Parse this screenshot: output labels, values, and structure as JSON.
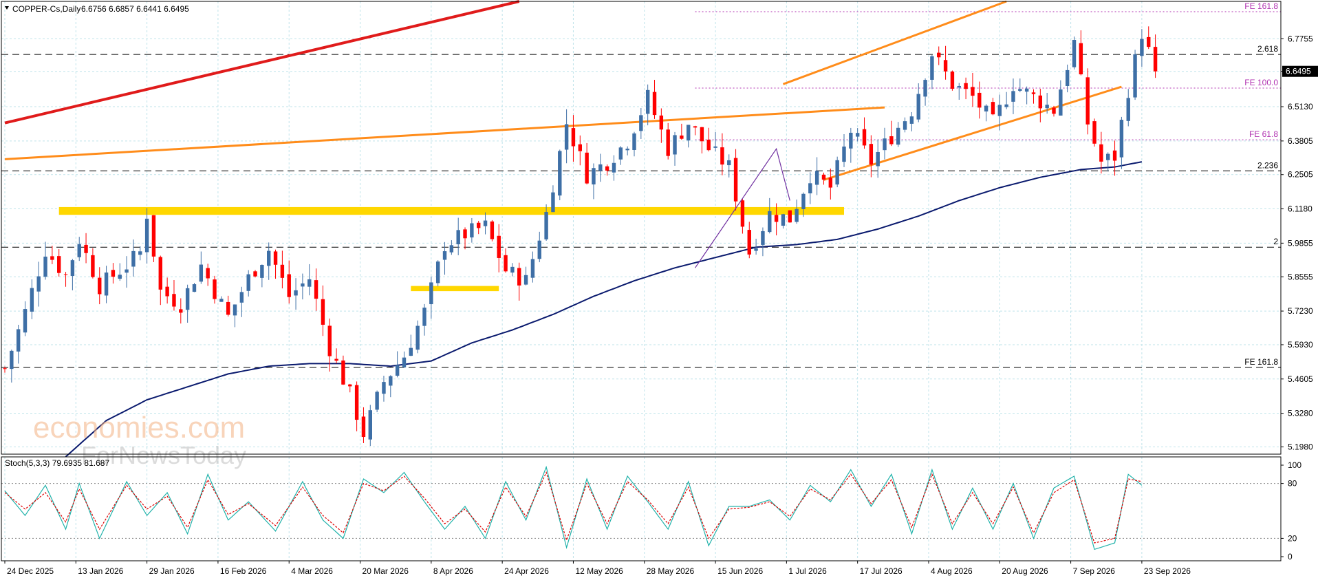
{
  "header": {
    "symbol": "COPPER-Cs,Daily",
    "ohlc": "6.6756 6.6857 6.6441 6.6495"
  },
  "indicator": {
    "label": "Stoch(5,3,3) 79.6935 81.687"
  },
  "watermark": {
    "brand": "economies.com",
    "sub": "ForNewsToday"
  },
  "colors": {
    "bull": "#3e6fa6",
    "bear": "#ff0000",
    "ma": "#0a1a6e",
    "trend_red": "#e01b1b",
    "trend_orange": "#ff8c1a",
    "zone": "#ffd700",
    "fe_line": "#b030b0",
    "stoch_main": "#20b2aa",
    "stoch_signal": "#dd0000",
    "grid": "#bfe3ea"
  },
  "chart_data": {
    "type": "candlestick",
    "instrument": "COPPER-Cs",
    "timeframe": "Daily",
    "last_price": "6.6495",
    "y_ticks": [
      "6.7755",
      "6.6495",
      "6.5130",
      "6.3805",
      "6.2505",
      "6.1180",
      "5.9855",
      "5.8555",
      "5.7230",
      "5.5930",
      "5.4605",
      "5.3280",
      "5.1980"
    ],
    "y_tick_values": [
      6.7755,
      6.6495,
      6.513,
      6.3805,
      6.2505,
      6.118,
      5.9855,
      5.8555,
      5.723,
      5.593,
      5.4605,
      5.328,
      5.198
    ],
    "ylim": [
      5.17,
      6.92
    ],
    "x_ticks": [
      "24 Dec 2025",
      "13 Jan 2026",
      "29 Jan 2026",
      "16 Feb 2026",
      "4 Mar 2026",
      "20 Mar 2026",
      "8 Apr 2026",
      "24 Apr 2026",
      "12 May 2026",
      "28 May 2026",
      "15 Jun 2026",
      "1 Jul 2026",
      "17 Jul 2026",
      "4 Aug 2026",
      "20 Aug 2026",
      "7 Sep 2026",
      "23 Sep 2026"
    ],
    "x_tick_bars": [
      0,
      10.5,
      21,
      31.5,
      42,
      52.5,
      63,
      73.5,
      84,
      94.5,
      105,
      115.5,
      126,
      136.5,
      147,
      157.5,
      168
    ],
    "bar_range": [
      0,
      178
    ],
    "candles_anchor_closes": [
      [
        0,
        5.5
      ],
      [
        3,
        5.72
      ],
      [
        6,
        5.96
      ],
      [
        9,
        5.86
      ],
      [
        11,
        6.0
      ],
      [
        14,
        5.82
      ],
      [
        18,
        5.9
      ],
      [
        20,
        5.95
      ],
      [
        21,
        6.1
      ],
      [
        23,
        5.8
      ],
      [
        26,
        5.75
      ],
      [
        29,
        5.9
      ],
      [
        33,
        5.7
      ],
      [
        36,
        5.85
      ],
      [
        39,
        5.96
      ],
      [
        42,
        5.78
      ],
      [
        45,
        5.85
      ],
      [
        48,
        5.58
      ],
      [
        51,
        5.4
      ],
      [
        53,
        5.25
      ],
      [
        56,
        5.45
      ],
      [
        59,
        5.55
      ],
      [
        62,
        5.72
      ],
      [
        65,
        5.98
      ],
      [
        68,
        6.02
      ],
      [
        71,
        6.05
      ],
      [
        74,
        5.88
      ],
      [
        77,
        5.84
      ],
      [
        80,
        6.1
      ],
      [
        83,
        6.45
      ],
      [
        86,
        6.25
      ],
      [
        89,
        6.3
      ],
      [
        92,
        6.38
      ],
      [
        95,
        6.55
      ],
      [
        98,
        6.35
      ],
      [
        101,
        6.45
      ],
      [
        104,
        6.35
      ],
      [
        107,
        6.28
      ],
      [
        110,
        5.95
      ],
      [
        113,
        6.1
      ],
      [
        116,
        6.08
      ],
      [
        119,
        6.25
      ],
      [
        122,
        6.2
      ],
      [
        125,
        6.42
      ],
      [
        128,
        6.3
      ],
      [
        131,
        6.4
      ],
      [
        134,
        6.5
      ],
      [
        137,
        6.72
      ],
      [
        140,
        6.6
      ],
      [
        143,
        6.55
      ],
      [
        146,
        6.45
      ],
      [
        149,
        6.6
      ],
      [
        152,
        6.55
      ],
      [
        155,
        6.5
      ],
      [
        158,
        6.76
      ],
      [
        160,
        6.45
      ],
      [
        162,
        6.3
      ],
      [
        164,
        6.32
      ],
      [
        166,
        6.58
      ],
      [
        168,
        6.8
      ],
      [
        170,
        6.65
      ]
    ],
    "ma": {
      "name": "",
      "points": [
        [
          9,
          5.16
        ],
        [
          15,
          5.3
        ],
        [
          21,
          5.38
        ],
        [
          27,
          5.43
        ],
        [
          33,
          5.48
        ],
        [
          39,
          5.51
        ],
        [
          45,
          5.52
        ],
        [
          51,
          5.52
        ],
        [
          57,
          5.51
        ],
        [
          63,
          5.53
        ],
        [
          69,
          5.6
        ],
        [
          75,
          5.65
        ],
        [
          81,
          5.71
        ],
        [
          87,
          5.78
        ],
        [
          93,
          5.84
        ],
        [
          99,
          5.89
        ],
        [
          105,
          5.93
        ],
        [
          111,
          5.97
        ],
        [
          117,
          5.98
        ],
        [
          123,
          6.0
        ],
        [
          129,
          6.04
        ],
        [
          135,
          6.09
        ],
        [
          141,
          6.15
        ],
        [
          147,
          6.2
        ],
        [
          153,
          6.24
        ],
        [
          159,
          6.27
        ],
        [
          164,
          6.28
        ],
        [
          168,
          6.3
        ]
      ]
    },
    "stochastic": {
      "levels": [
        "100",
        "80",
        "20",
        "0"
      ],
      "level_values": [
        100,
        80,
        20,
        0
      ],
      "main_anchors": [
        [
          0,
          72
        ],
        [
          3,
          45
        ],
        [
          6,
          78
        ],
        [
          9,
          30
        ],
        [
          11,
          80
        ],
        [
          14,
          20
        ],
        [
          18,
          82
        ],
        [
          21,
          45
        ],
        [
          24,
          70
        ],
        [
          27,
          25
        ],
        [
          30,
          90
        ],
        [
          33,
          40
        ],
        [
          36,
          60
        ],
        [
          40,
          28
        ],
        [
          44,
          82
        ],
        [
          47,
          40
        ],
        [
          50,
          20
        ],
        [
          53,
          85
        ],
        [
          56,
          70
        ],
        [
          59,
          92
        ],
        [
          62,
          60
        ],
        [
          65,
          30
        ],
        [
          68,
          55
        ],
        [
          71,
          20
        ],
        [
          74,
          82
        ],
        [
          77,
          40
        ],
        [
          80,
          98
        ],
        [
          83,
          10
        ],
        [
          86,
          85
        ],
        [
          89,
          30
        ],
        [
          92,
          88
        ],
        [
          95,
          60
        ],
        [
          98,
          30
        ],
        [
          101,
          82
        ],
        [
          104,
          12
        ],
        [
          107,
          55
        ],
        [
          110,
          55
        ],
        [
          113,
          62
        ],
        [
          116,
          40
        ],
        [
          119,
          78
        ],
        [
          122,
          60
        ],
        [
          125,
          95
        ],
        [
          128,
          55
        ],
        [
          131,
          90
        ],
        [
          134,
          25
        ],
        [
          137,
          95
        ],
        [
          140,
          30
        ],
        [
          143,
          75
        ],
        [
          146,
          30
        ],
        [
          149,
          80
        ],
        [
          152,
          20
        ],
        [
          155,
          75
        ],
        [
          158,
          88
        ],
        [
          161,
          8
        ],
        [
          164,
          15
        ],
        [
          166,
          90
        ],
        [
          168,
          78
        ]
      ],
      "signal_anchors": [
        [
          0,
          70
        ],
        [
          3,
          52
        ],
        [
          6,
          70
        ],
        [
          9,
          38
        ],
        [
          11,
          74
        ],
        [
          14,
          30
        ],
        [
          18,
          78
        ],
        [
          21,
          52
        ],
        [
          24,
          66
        ],
        [
          27,
          32
        ],
        [
          30,
          84
        ],
        [
          33,
          46
        ],
        [
          36,
          58
        ],
        [
          40,
          34
        ],
        [
          44,
          76
        ],
        [
          47,
          45
        ],
        [
          50,
          26
        ],
        [
          53,
          80
        ],
        [
          56,
          72
        ],
        [
          59,
          88
        ],
        [
          62,
          64
        ],
        [
          65,
          36
        ],
        [
          68,
          52
        ],
        [
          71,
          27
        ],
        [
          74,
          76
        ],
        [
          77,
          44
        ],
        [
          80,
          92
        ],
        [
          83,
          18
        ],
        [
          86,
          80
        ],
        [
          89,
          36
        ],
        [
          92,
          82
        ],
        [
          95,
          62
        ],
        [
          98,
          36
        ],
        [
          101,
          76
        ],
        [
          104,
          20
        ],
        [
          107,
          52
        ],
        [
          110,
          54
        ],
        [
          113,
          60
        ],
        [
          116,
          44
        ],
        [
          119,
          74
        ],
        [
          122,
          62
        ],
        [
          125,
          90
        ],
        [
          128,
          58
        ],
        [
          131,
          84
        ],
        [
          134,
          32
        ],
        [
          137,
          90
        ],
        [
          140,
          36
        ],
        [
          143,
          70
        ],
        [
          146,
          36
        ],
        [
          149,
          76
        ],
        [
          152,
          26
        ],
        [
          155,
          70
        ],
        [
          158,
          84
        ],
        [
          161,
          15
        ],
        [
          164,
          20
        ],
        [
          166,
          85
        ],
        [
          168,
          82
        ]
      ]
    },
    "levels": [
      {
        "label": "2.618",
        "value": 6.715,
        "style": "dashed",
        "color": "#000000"
      },
      {
        "label": "2.236",
        "value": 6.265,
        "style": "dashed",
        "color": "#000000"
      },
      {
        "label": "2",
        "value": 5.97,
        "style": "dashed",
        "color": "#000000"
      },
      {
        "label": "FE 161.8",
        "value": 5.505,
        "style": "dashed",
        "color": "#000000"
      },
      {
        "label": "FE 161.8",
        "value": 6.88,
        "style": "dotted",
        "color": "#b030b0"
      },
      {
        "label": "FE 100.0",
        "value": 6.585,
        "style": "dotted",
        "color": "#b030b0"
      },
      {
        "label": "FE 61.8",
        "value": 6.385,
        "style": "dotted",
        "color": "#b030b0"
      }
    ],
    "trendlines": [
      {
        "color": "red",
        "from": [
          0,
          6.45
        ],
        "to": [
          76,
          6.92
        ]
      },
      {
        "color": "orange",
        "from": [
          0,
          6.31
        ],
        "to": [
          130,
          6.51
        ]
      },
      {
        "color": "orange",
        "from": [
          115,
          6.6
        ],
        "to": [
          148,
          6.92
        ]
      },
      {
        "color": "orange",
        "from": [
          121,
          6.23
        ],
        "to": [
          165,
          6.59
        ]
      }
    ],
    "zones": [
      {
        "from": [
          8,
          6.125
        ],
        "to": [
          124,
          6.095
        ]
      },
      {
        "from": [
          60,
          5.82
        ],
        "to": [
          73,
          5.8
        ]
      }
    ],
    "zigzag": [
      [
        102,
        5.89
      ],
      [
        114,
        6.35
      ],
      [
        116,
        6.15
      ]
    ]
  }
}
